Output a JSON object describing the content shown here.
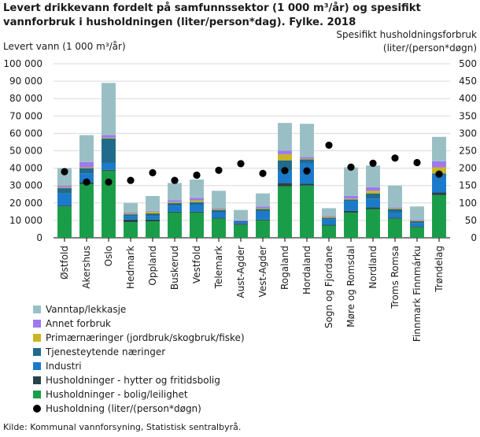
{
  "chart_data": {
    "type": "bar",
    "title": "Levert drikkevann fordelt på samfunnssektor (1 000 m³/år) og spesifikt vannforbruk i husholdningen (liter/person*dag). Fylke. 2018",
    "ylabel": "Levert vann (1 000 m³/år)",
    "ylabel_right_line1": "Spesifikt  husholdningsforbruk",
    "ylabel_right_line2": "(liter/(person*døgn)",
    "ylim": [
      0,
      100000
    ],
    "y2lim": [
      0,
      500
    ],
    "yticks": [
      "0",
      "10 000",
      "20 000",
      "30 000",
      "40 000",
      "50 000",
      "60 000",
      "70 000",
      "80 000",
      "90 000",
      "100 000"
    ],
    "y2ticks": [
      "0",
      "50",
      "100",
      "150",
      "200",
      "250",
      "300",
      "350",
      "400",
      "450",
      "500"
    ],
    "categories": [
      "Østfold",
      "Akershus",
      "Oslo",
      "Hedmark",
      "Oppland",
      "Buskerud",
      "Vestfold",
      "Telemark",
      "Aust-Agder",
      "Vest-Agder",
      "Rogaland",
      "Hordaland",
      "Sogn og Fjordane",
      "Møre og Romsdal",
      "Nordland",
      "Troms Romsa",
      "Finnmark Finnmárku",
      "Trøndelag"
    ],
    "series": [
      {
        "name": "Husholdninger - bolig/leilighet",
        "color": "#1a9d49",
        "values": [
          18000,
          31000,
          38500,
          9000,
          9500,
          14500,
          14500,
          11000,
          7500,
          10000,
          29500,
          30000,
          7000,
          14500,
          16500,
          11000,
          6000,
          24500
        ]
      },
      {
        "name": "Husholdninger - hytter og fritidsbolig",
        "color": "#274247",
        "values": [
          500,
          1000,
          500,
          1500,
          1000,
          500,
          500,
          500,
          500,
          500,
          2000,
          1000,
          500,
          1000,
          1000,
          500,
          500,
          1500
        ]
      },
      {
        "name": "Industri",
        "color": "#1b7ac9",
        "values": [
          7000,
          5000,
          4000,
          2000,
          2000,
          3500,
          4000,
          3000,
          1000,
          4500,
          7000,
          12000,
          3000,
          5500,
          5000,
          3000,
          2000,
          10000
        ]
      },
      {
        "name": "Tjenesteytende næringer",
        "color": "#206a8c",
        "values": [
          3000,
          3000,
          14000,
          1000,
          1500,
          1500,
          1500,
          1500,
          500,
          1500,
          6000,
          2000,
          1000,
          1000,
          3000,
          2000,
          1000,
          1000
        ]
      },
      {
        "name": "Primærnæringer (jordbruk/skogbruk/fiske)",
        "color": "#c9b624",
        "values": [
          500,
          500,
          500,
          500,
          1000,
          500,
          1000,
          500,
          0,
          500,
          3500,
          500,
          500,
          500,
          1500,
          500,
          500,
          3500
        ]
      },
      {
        "name": "Annet forbruk",
        "color": "#9e79f0",
        "values": [
          1000,
          3000,
          1500,
          500,
          500,
          1000,
          1500,
          500,
          500,
          1000,
          2000,
          1000,
          500,
          1500,
          2000,
          500,
          500,
          3500
        ]
      },
      {
        "name": "Vanntap/lekkasje",
        "color": "#99bfc5",
        "values": [
          10000,
          15500,
          30000,
          5500,
          8500,
          10000,
          10500,
          10000,
          6000,
          7500,
          16000,
          19000,
          4500,
          16500,
          12500,
          12500,
          7500,
          14000
        ]
      }
    ],
    "line_series": {
      "name": "Husholdning (liter/(person*døgn)",
      "color": "#000000",
      "axis": "right",
      "values": [
        190,
        160,
        160,
        165,
        187,
        165,
        180,
        194,
        213,
        185,
        193,
        192,
        266,
        203,
        214,
        229,
        216,
        183
      ]
    },
    "grid": true,
    "legend_placement": "bottom-left"
  },
  "source": "Kilde: Kommunal vannforsyning, Statistisk sentralbyrå."
}
